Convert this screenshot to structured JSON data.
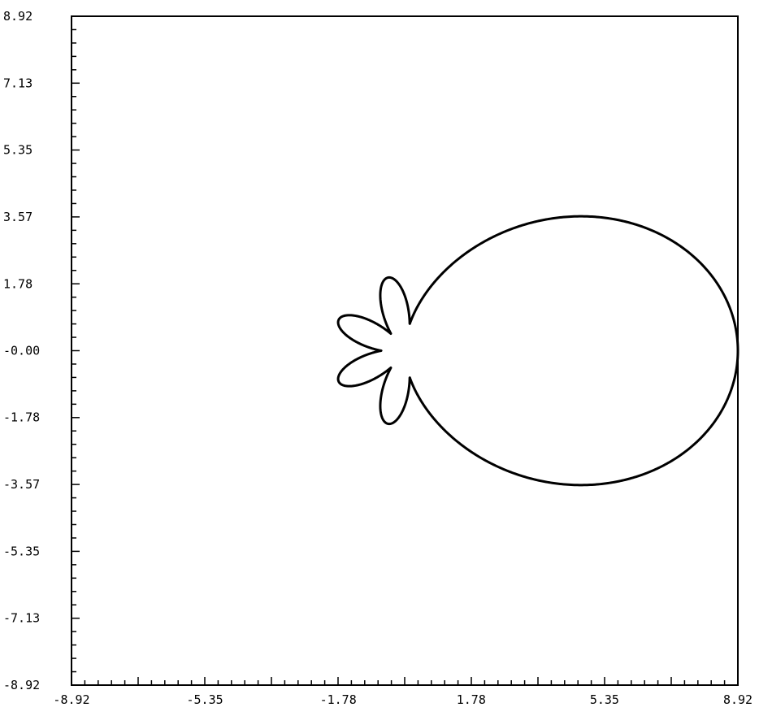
{
  "chart_data": {
    "type": "line",
    "subtype": "polar-pattern",
    "title": "",
    "xlabel": "",
    "ylabel": "",
    "xlim": [
      -8.92,
      8.92
    ],
    "ylim": [
      -8.92,
      8.92
    ],
    "grid": false,
    "x_tick_labels": [
      "-8.92",
      "-5.35",
      "-1.78",
      "1.78",
      "5.35",
      "8.92"
    ],
    "y_tick_labels": [
      "8.92",
      "7.13",
      "5.35",
      "3.57",
      "1.78",
      "-0.00",
      "-1.78",
      "-3.57",
      "-5.35",
      "-7.13",
      "-8.92"
    ],
    "x_tick_values": [
      -8.92,
      -5.35,
      -1.78,
      1.78,
      5.35,
      8.92
    ],
    "y_tick_values": [
      8.92,
      7.13,
      5.35,
      3.57,
      1.78,
      0.0,
      -1.78,
      -3.57,
      -5.35,
      -7.13,
      -8.92
    ],
    "series": [
      {
        "lobes": [
          {
            "angle_deg": 0,
            "length": 8.92,
            "width": 1.6
          },
          {
            "angle_deg": 38,
            "length": 1.0,
            "width": 0.22
          },
          {
            "angle_deg": -38,
            "length": 1.0,
            "width": 0.22
          },
          {
            "angle_deg": 103,
            "length": 2.0,
            "width": 0.45
          },
          {
            "angle_deg": -103,
            "length": 2.0,
            "width": 0.45
          },
          {
            "angle_deg": 155,
            "length": 1.95,
            "width": 0.45
          },
          {
            "angle_deg": -155,
            "length": 1.95,
            "width": 0.45
          }
        ]
      }
    ],
    "line_color": "#000000"
  }
}
